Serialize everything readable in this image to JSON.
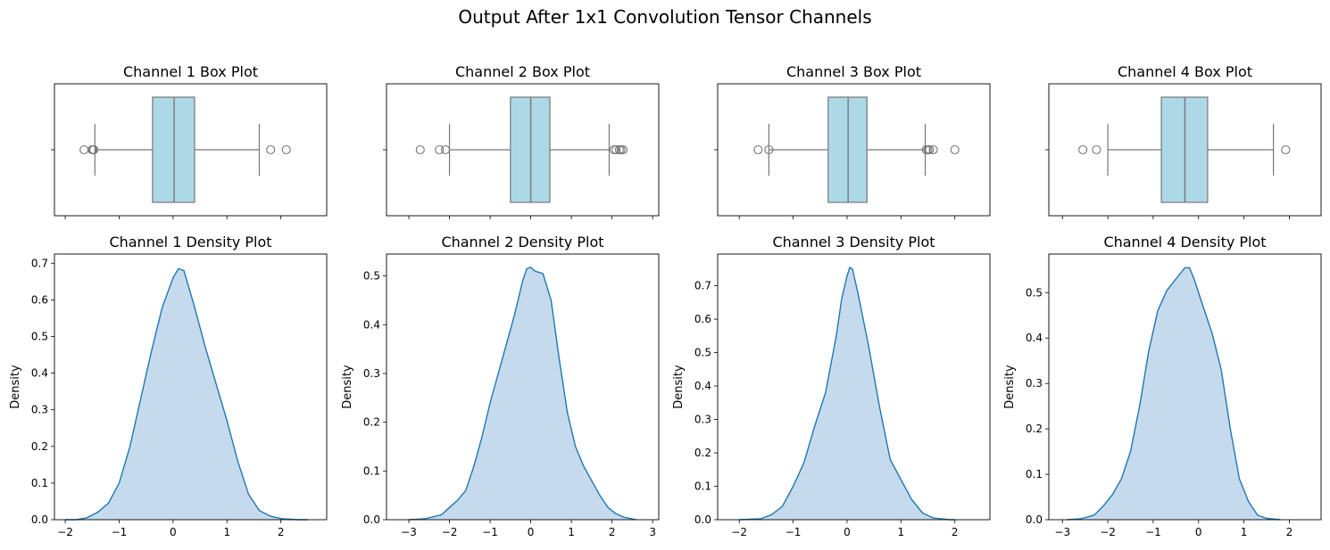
{
  "figure": {
    "title": "Output After 1x1 Convolution Tensor Channels"
  },
  "colors": {
    "box_fill": "#add8e6",
    "box_edge": "#777777",
    "density_line": "#1f77b4",
    "density_fill": "#c5dbed"
  },
  "chart_data": [
    {
      "type": "box",
      "title": "Channel 1 Box Plot",
      "xlim": [
        -2.2,
        2.85
      ],
      "q1": -0.38,
      "median": 0.02,
      "q3": 0.4,
      "whisker_low": -1.45,
      "whisker_high": 1.6,
      "outliers": [
        -1.65,
        -1.5,
        -1.48,
        -1.47,
        1.81,
        2.1
      ]
    },
    {
      "type": "box",
      "title": "Channel 2 Box Plot",
      "xlim": [
        -3.55,
        3.15
      ],
      "q1": -0.5,
      "median": 0.0,
      "q3": 0.47,
      "whisker_low": -2.0,
      "whisker_high": 1.93,
      "outliers": [
        -2.72,
        -2.25,
        -2.1,
        2.05,
        2.1,
        2.18,
        2.22,
        2.27
      ]
    },
    {
      "type": "box",
      "title": "Channel 3 Box Plot",
      "xlim": [
        -2.4,
        2.65
      ],
      "q1": -0.35,
      "median": 0.02,
      "q3": 0.37,
      "whisker_low": -1.45,
      "whisker_high": 1.45,
      "outliers": [
        -1.65,
        -1.45,
        1.47,
        1.5,
        1.53,
        1.6,
        2.0
      ]
    },
    {
      "type": "box",
      "title": "Channel 4 Box Plot",
      "xlim": [
        -3.3,
        2.7
      ],
      "q1": -0.82,
      "median": -0.3,
      "q3": 0.2,
      "whisker_low": -2.0,
      "whisker_high": 1.65,
      "outliers": [
        -2.55,
        -2.25,
        1.92
      ]
    },
    {
      "type": "line",
      "title": "Channel 1 Density Plot",
      "ylabel": "Density",
      "xlim": [
        -2.2,
        2.85
      ],
      "ylim": [
        0,
        0.725
      ],
      "xticks": [
        -2,
        -1,
        0,
        1,
        2
      ],
      "yticks": [
        0.0,
        0.1,
        0.2,
        0.3,
        0.4,
        0.5,
        0.6,
        0.7
      ],
      "points": [
        [
          -2.0,
          0.0
        ],
        [
          -1.8,
          0.0
        ],
        [
          -1.6,
          0.005
        ],
        [
          -1.4,
          0.02
        ],
        [
          -1.2,
          0.045
        ],
        [
          -1.0,
          0.1
        ],
        [
          -0.8,
          0.2
        ],
        [
          -0.6,
          0.33
        ],
        [
          -0.4,
          0.46
        ],
        [
          -0.2,
          0.58
        ],
        [
          0.0,
          0.66
        ],
        [
          0.1,
          0.685
        ],
        [
          0.2,
          0.68
        ],
        [
          0.4,
          0.58
        ],
        [
          0.6,
          0.47
        ],
        [
          0.8,
          0.37
        ],
        [
          1.0,
          0.27
        ],
        [
          1.2,
          0.16
        ],
        [
          1.4,
          0.07
        ],
        [
          1.6,
          0.025
        ],
        [
          1.8,
          0.01
        ],
        [
          2.0,
          0.003
        ],
        [
          2.3,
          0.0
        ],
        [
          2.5,
          0.0
        ]
      ]
    },
    {
      "type": "line",
      "title": "Channel 2 Density Plot",
      "ylabel": "Density",
      "xlim": [
        -3.55,
        3.15
      ],
      "ylim": [
        0,
        0.545
      ],
      "xticks": [
        -3,
        -2,
        -1,
        0,
        1,
        2,
        3
      ],
      "yticks": [
        0.0,
        0.1,
        0.2,
        0.3,
        0.4,
        0.5
      ],
      "points": [
        [
          -3.0,
          0.0
        ],
        [
          -2.6,
          0.002
        ],
        [
          -2.2,
          0.01
        ],
        [
          -2.0,
          0.025
        ],
        [
          -1.8,
          0.04
        ],
        [
          -1.6,
          0.06
        ],
        [
          -1.4,
          0.11
        ],
        [
          -1.2,
          0.17
        ],
        [
          -1.0,
          0.24
        ],
        [
          -0.8,
          0.3
        ],
        [
          -0.6,
          0.36
        ],
        [
          -0.4,
          0.42
        ],
        [
          -0.2,
          0.49
        ],
        [
          -0.1,
          0.515
        ],
        [
          0.0,
          0.518
        ],
        [
          0.1,
          0.51
        ],
        [
          0.3,
          0.505
        ],
        [
          0.5,
          0.45
        ],
        [
          0.7,
          0.33
        ],
        [
          0.9,
          0.22
        ],
        [
          1.1,
          0.15
        ],
        [
          1.3,
          0.11
        ],
        [
          1.5,
          0.08
        ],
        [
          1.7,
          0.05
        ],
        [
          1.9,
          0.025
        ],
        [
          2.1,
          0.012
        ],
        [
          2.3,
          0.005
        ],
        [
          2.6,
          0.0
        ]
      ]
    },
    {
      "type": "line",
      "title": "Channel 3 Density Plot",
      "ylabel": "Density",
      "xlim": [
        -2.4,
        2.65
      ],
      "ylim": [
        0,
        0.795
      ],
      "xticks": [
        -2,
        -1,
        0,
        1,
        2
      ],
      "yticks": [
        0.0,
        0.1,
        0.2,
        0.3,
        0.4,
        0.5,
        0.6,
        0.7
      ],
      "points": [
        [
          -2.0,
          0.0
        ],
        [
          -1.6,
          0.003
        ],
        [
          -1.4,
          0.015
        ],
        [
          -1.2,
          0.04
        ],
        [
          -1.0,
          0.1
        ],
        [
          -0.8,
          0.17
        ],
        [
          -0.6,
          0.28
        ],
        [
          -0.4,
          0.38
        ],
        [
          -0.2,
          0.55
        ],
        [
          -0.1,
          0.66
        ],
        [
          0.0,
          0.73
        ],
        [
          0.05,
          0.755
        ],
        [
          0.1,
          0.75
        ],
        [
          0.2,
          0.68
        ],
        [
          0.4,
          0.52
        ],
        [
          0.6,
          0.34
        ],
        [
          0.8,
          0.18
        ],
        [
          1.0,
          0.12
        ],
        [
          1.2,
          0.06
        ],
        [
          1.4,
          0.02
        ],
        [
          1.6,
          0.005
        ],
        [
          1.9,
          0.0
        ],
        [
          2.0,
          0.0
        ]
      ]
    },
    {
      "type": "line",
      "title": "Channel 4 Density Plot",
      "ylabel": "Density",
      "xlim": [
        -3.3,
        2.7
      ],
      "ylim": [
        0,
        0.585
      ],
      "xticks": [
        -3,
        -2,
        -1,
        0,
        1,
        2
      ],
      "yticks": [
        0.0,
        0.1,
        0.2,
        0.3,
        0.4,
        0.5
      ],
      "points": [
        [
          -2.9,
          0.0
        ],
        [
          -2.6,
          0.002
        ],
        [
          -2.3,
          0.01
        ],
        [
          -2.1,
          0.03
        ],
        [
          -1.9,
          0.055
        ],
        [
          -1.7,
          0.09
        ],
        [
          -1.5,
          0.15
        ],
        [
          -1.3,
          0.25
        ],
        [
          -1.1,
          0.37
        ],
        [
          -0.9,
          0.46
        ],
        [
          -0.7,
          0.505
        ],
        [
          -0.5,
          0.53
        ],
        [
          -0.3,
          0.555
        ],
        [
          -0.2,
          0.555
        ],
        [
          -0.1,
          0.53
        ],
        [
          0.1,
          0.47
        ],
        [
          0.3,
          0.41
        ],
        [
          0.5,
          0.33
        ],
        [
          0.7,
          0.2
        ],
        [
          0.9,
          0.09
        ],
        [
          1.1,
          0.04
        ],
        [
          1.3,
          0.01
        ],
        [
          1.5,
          0.003
        ],
        [
          1.8,
          0.0
        ]
      ]
    }
  ]
}
